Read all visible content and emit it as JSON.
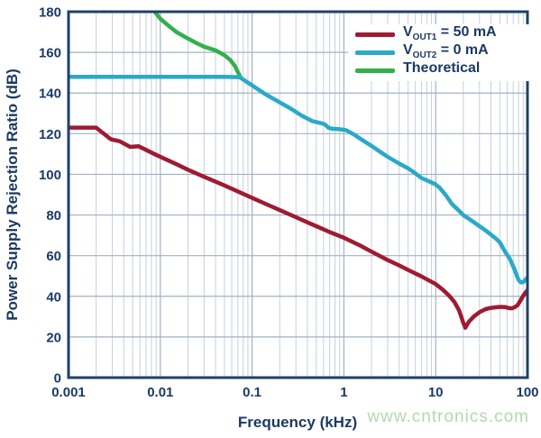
{
  "chart_data": {
    "type": "line",
    "title": "",
    "xlabel": "Frequency (kHz)",
    "ylabel": "Power Supply Rejection Ratio (dB)",
    "x_scale": "log",
    "xlim": [
      0.001,
      100
    ],
    "ylim": [
      0,
      180
    ],
    "grid": {
      "vertical_minor": true,
      "vertical_major": true,
      "horizontal_major_step": 20
    },
    "x_ticks": {
      "values": [
        0.001,
        0.01,
        0.1,
        1,
        10,
        100
      ],
      "labels": [
        "0.001",
        "0.01",
        "0.1",
        "1",
        "10",
        "100"
      ]
    },
    "y_ticks": {
      "values": [
        0,
        20,
        40,
        60,
        80,
        100,
        120,
        140,
        160,
        180
      ],
      "labels": [
        "0",
        "20",
        "40",
        "60",
        "80",
        "100",
        "120",
        "140",
        "160",
        "180"
      ]
    },
    "legend": {
      "position": "top-right",
      "items": [
        {
          "prefix": "V",
          "sub": "OUT1",
          "suffix": " = 50 mA",
          "color": "#9e1b32"
        },
        {
          "prefix": "V",
          "sub": "OUT2",
          "suffix": " = 0 mA",
          "color": "#2aa9c9"
        },
        {
          "prefix": "Theoretical",
          "sub": "",
          "suffix": "",
          "color": "#33b04e"
        }
      ]
    },
    "series": [
      {
        "name": "Theoretical",
        "id": "theoretical",
        "color": "#33b04e",
        "points": [
          [
            0.0087,
            180
          ],
          [
            0.01,
            176.5
          ],
          [
            0.012,
            173.5
          ],
          [
            0.015,
            170
          ],
          [
            0.02,
            166.8
          ],
          [
            0.025,
            164.5
          ],
          [
            0.03,
            162.8
          ],
          [
            0.04,
            161
          ],
          [
            0.05,
            158.6
          ],
          [
            0.058,
            156.2
          ],
          [
            0.065,
            153.2
          ],
          [
            0.07,
            150.3
          ],
          [
            0.074,
            148.2
          ]
        ]
      },
      {
        "name": "VOUT2 = 0 mA",
        "id": "vout2",
        "color": "#2aa9c9",
        "points": [
          [
            0.001,
            148
          ],
          [
            0.05,
            148
          ],
          [
            0.073,
            147.8
          ],
          [
            0.1,
            143.8
          ],
          [
            0.142,
            139.2
          ],
          [
            0.2,
            135.4
          ],
          [
            0.26,
            132.5
          ],
          [
            0.35,
            128.8
          ],
          [
            0.45,
            126.2
          ],
          [
            0.55,
            125.3
          ],
          [
            0.62,
            124.6
          ],
          [
            0.68,
            122.9
          ],
          [
            0.75,
            122.4
          ],
          [
            0.9,
            122.2
          ],
          [
            1.05,
            121.8
          ],
          [
            1.3,
            119.5
          ],
          [
            1.5,
            117.6
          ],
          [
            2,
            114
          ],
          [
            2.5,
            111
          ],
          [
            3,
            108.6
          ],
          [
            4,
            105.3
          ],
          [
            5,
            103
          ],
          [
            6,
            100.5
          ],
          [
            7,
            98.2
          ],
          [
            8.5,
            96.5
          ],
          [
            10,
            95
          ],
          [
            11,
            93.5
          ],
          [
            13,
            89.5
          ],
          [
            15,
            85.5
          ],
          [
            18,
            82
          ],
          [
            20,
            80
          ],
          [
            25,
            77
          ],
          [
            30,
            74.5
          ],
          [
            36,
            72
          ],
          [
            45,
            68.5
          ],
          [
            50,
            66.5
          ],
          [
            57,
            62
          ],
          [
            64,
            58.5
          ],
          [
            71,
            54
          ],
          [
            76,
            50.5
          ],
          [
            80,
            48
          ],
          [
            85,
            46.8
          ],
          [
            90,
            47
          ],
          [
            100,
            49.2
          ]
        ]
      },
      {
        "name": "VOUT1 = 50 mA",
        "id": "vout1",
        "color": "#9e1b32",
        "points": [
          [
            0.001,
            123
          ],
          [
            0.002,
            123
          ],
          [
            0.0029,
            117.2
          ],
          [
            0.0036,
            116.3
          ],
          [
            0.0047,
            113.5
          ],
          [
            0.0058,
            113.8
          ],
          [
            0.0068,
            112.3
          ],
          [
            0.009,
            109.6
          ],
          [
            0.012,
            107
          ],
          [
            0.015,
            105
          ],
          [
            0.02,
            102.3
          ],
          [
            0.03,
            98.8
          ],
          [
            0.04,
            96.4
          ],
          [
            0.05,
            94.5
          ],
          [
            0.07,
            91.6
          ],
          [
            0.1,
            88.4
          ],
          [
            0.15,
            84.9
          ],
          [
            0.2,
            82.4
          ],
          [
            0.3,
            78.9
          ],
          [
            0.4,
            76.4
          ],
          [
            0.5,
            74.5
          ],
          [
            0.7,
            71.6
          ],
          [
            1,
            68.8
          ],
          [
            1.5,
            65
          ],
          [
            2,
            62
          ],
          [
            3,
            57.8
          ],
          [
            4,
            55.2
          ],
          [
            5,
            53
          ],
          [
            7,
            49.8
          ],
          [
            10,
            46
          ],
          [
            12,
            43.2
          ],
          [
            14,
            40.3
          ],
          [
            16,
            37.2
          ],
          [
            18,
            33
          ],
          [
            20,
            27
          ],
          [
            21,
            24.5
          ],
          [
            23,
            27.5
          ],
          [
            26,
            30
          ],
          [
            30,
            32.2
          ],
          [
            35,
            33.7
          ],
          [
            40,
            34.3
          ],
          [
            45,
            34.6
          ],
          [
            50,
            34.8
          ],
          [
            57,
            34.7
          ],
          [
            63,
            34.2
          ],
          [
            68,
            34.1
          ],
          [
            73,
            34.7
          ],
          [
            78,
            35.6
          ],
          [
            84,
            38
          ],
          [
            90,
            40.3
          ],
          [
            95,
            41.7
          ],
          [
            100,
            43
          ]
        ]
      }
    ]
  },
  "watermark": {
    "text": "www.cntronics.com",
    "color": "#b4d9ab"
  },
  "colors": {
    "axis_text": "#1b3a64",
    "frame": "#1d4266",
    "grid_minor": "#c7d0dc",
    "grid_major": "#a2b1c6",
    "background": "#ffffff"
  }
}
